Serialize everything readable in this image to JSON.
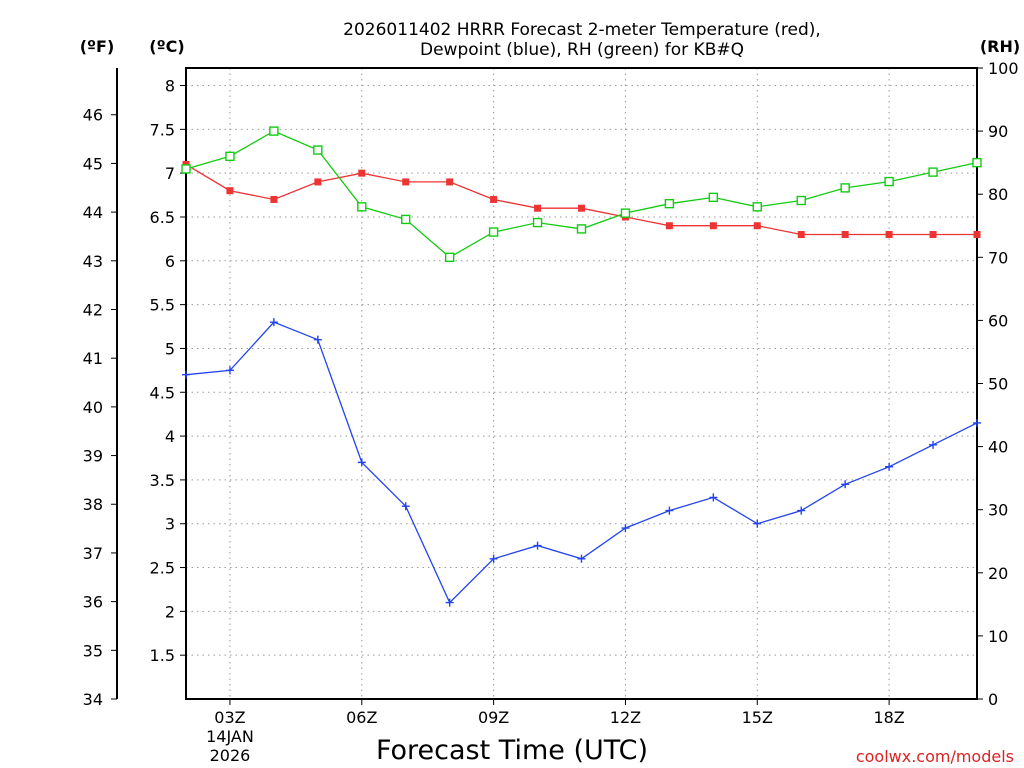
{
  "chart_data": {
    "type": "line",
    "title_line1": "2026011402 HRRR Forecast 2-meter Temperature (red),",
    "title_line2": "Dewpoint (blue), RH (green) for KB#Q",
    "units": {
      "fahrenheit": "(ºF)",
      "celsius": "(ºC)",
      "rh": "(RH)"
    },
    "xlabel": "Forecast Time (UTC)",
    "credit": "coolwx.com/models",
    "x_hours": [
      2,
      3,
      4,
      5,
      6,
      7,
      8,
      9,
      10,
      11,
      12,
      13,
      14,
      15,
      16,
      17,
      18,
      19,
      20
    ],
    "x_ticks": [
      {
        "hour": 3,
        "label": "03Z",
        "sub1": "14JAN",
        "sub2": "2026"
      },
      {
        "hour": 6,
        "label": "06Z"
      },
      {
        "hour": 9,
        "label": "09Z"
      },
      {
        "hour": 12,
        "label": "12Z"
      },
      {
        "hour": 15,
        "label": "15Z"
      },
      {
        "hour": 18,
        "label": "18Z"
      }
    ],
    "celsius_axis": {
      "range": [
        1.0,
        8.2
      ],
      "ticks": [
        "1.5",
        "2",
        "2.5",
        "3",
        "3.5",
        "4",
        "4.5",
        "5",
        "5.5",
        "6",
        "6.5",
        "7",
        "7.5",
        "8"
      ]
    },
    "fahrenheit_axis": {
      "range": [
        34,
        46.96
      ],
      "ticks": [
        "34",
        "35",
        "36",
        "37",
        "38",
        "39",
        "40",
        "41",
        "42",
        "43",
        "44",
        "45",
        "46"
      ]
    },
    "rh_axis": {
      "range": [
        0,
        100
      ],
      "ticks": [
        "0",
        "10",
        "20",
        "30",
        "40",
        "50",
        "60",
        "70",
        "80",
        "90",
        "100"
      ]
    },
    "series": [
      {
        "name": "2-meter Temperature",
        "axis": "celsius",
        "color": "#ee3333",
        "marker": "filled-square",
        "values": [
          7.1,
          6.8,
          6.7,
          6.9,
          7.0,
          6.9,
          6.9,
          6.7,
          6.6,
          6.6,
          6.5,
          6.4,
          6.4,
          6.4,
          6.3,
          6.3,
          6.3,
          6.3,
          6.3
        ]
      },
      {
        "name": "Dewpoint",
        "axis": "celsius",
        "color": "#2244ee",
        "marker": "plus",
        "values": [
          4.7,
          4.75,
          5.3,
          5.1,
          3.7,
          3.2,
          2.1,
          2.6,
          2.75,
          2.6,
          2.95,
          3.15,
          3.3,
          3.0,
          3.15,
          3.45,
          3.65,
          3.9,
          4.15
        ]
      },
      {
        "name": "RH",
        "axis": "rh",
        "color": "#11cc11",
        "marker": "open-square",
        "values": [
          84,
          86,
          90,
          87,
          78,
          76,
          70,
          74,
          75.5,
          74.5,
          77,
          78.5,
          79.5,
          78,
          79,
          81,
          82,
          83.5,
          85
        ]
      }
    ]
  }
}
